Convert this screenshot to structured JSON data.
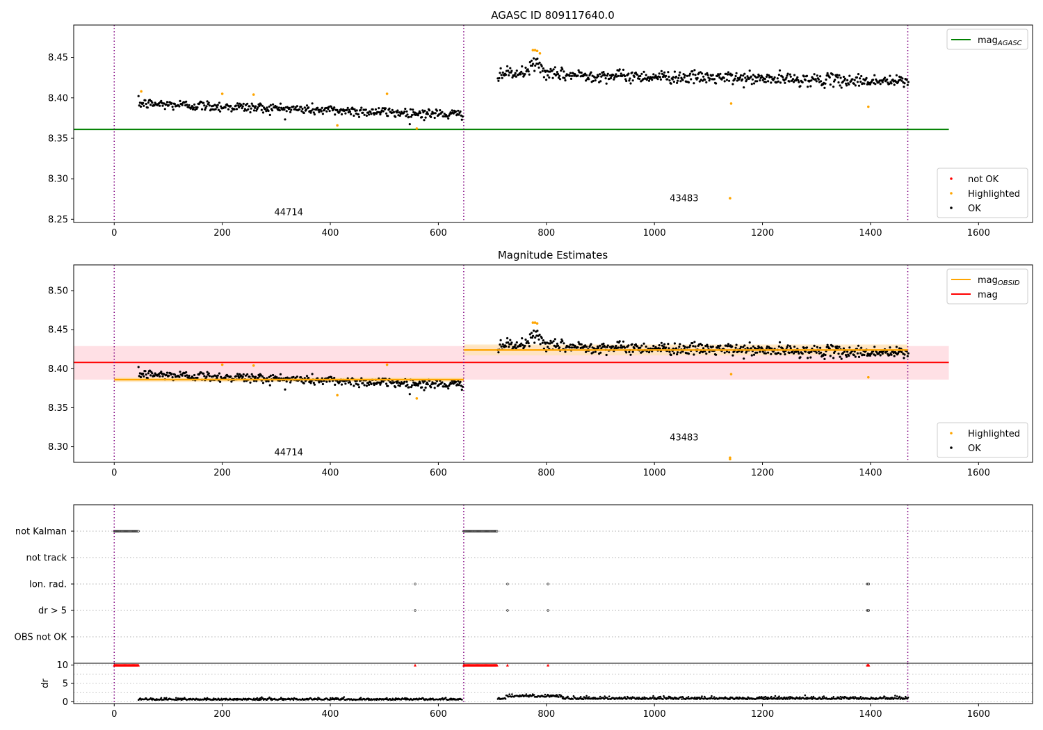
{
  "colors": {
    "ok": "#000000",
    "highlighted": "#ffa500",
    "not_ok": "#ff0000",
    "agasc_line": "#008000",
    "mag_line": "#ff0000",
    "mag_band": "#ffd6dc",
    "obsid_line": "#ffa500",
    "obsid_band": "#ffe3b8",
    "obs_boundary": "#800080",
    "grid": "#b0b0b0"
  },
  "chart_data": [
    {
      "type": "scatter",
      "title": "AGASC ID 809117640.0",
      "xlim": [
        -75,
        1700
      ],
      "ylim": [
        8.246,
        8.49
      ],
      "xticks": [
        0,
        200,
        400,
        600,
        800,
        1000,
        1200,
        1400,
        1600
      ],
      "xtick_labels": [
        "0",
        "200",
        "400",
        "600",
        "800",
        "1000",
        "1200",
        "1400",
        "1600"
      ],
      "yticks": [
        8.25,
        8.3,
        8.35,
        8.4,
        8.45
      ],
      "ytick_labels": [
        "8.25",
        "8.30",
        "8.35",
        "8.40",
        "8.45"
      ],
      "obs_boundaries": [
        0,
        647,
        1469
      ],
      "obsid_labels": [
        {
          "x": 323,
          "y": 8.255,
          "text": "44714"
        },
        {
          "x": 1055,
          "y": 8.272,
          "text": "43483"
        }
      ],
      "agasc_mag": {
        "value": 8.361,
        "x": [
          -75,
          1545
        ]
      },
      "segments": [
        {
          "x_start": 45,
          "x_end": 645,
          "y_start": 8.393,
          "y_end": 8.379,
          "noise": 0.006,
          "n": 430
        },
        {
          "x_start": 710,
          "x_end": 1470,
          "y_start": 8.43,
          "y_end": 8.42,
          "noise": 0.007,
          "n": 560
        }
      ],
      "highlighted_points": [
        [
          50,
          8.408
        ],
        [
          200,
          8.405
        ],
        [
          258,
          8.404
        ],
        [
          413,
          8.366
        ],
        [
          505,
          8.405
        ],
        [
          560,
          8.362
        ],
        [
          775,
          8.459
        ],
        [
          779,
          8.459
        ],
        [
          783,
          8.458
        ],
        [
          788,
          8.455
        ],
        [
          1142,
          8.393
        ],
        [
          1140,
          8.276
        ],
        [
          1396,
          8.389
        ]
      ],
      "not_ok_points": [],
      "legends": [
        {
          "position": "upper right",
          "entries": [
            {
              "label_main": "mag",
              "label_sub": "AGASC",
              "kind": "line",
              "color": "#008000"
            }
          ]
        },
        {
          "position": "lower right",
          "entries": [
            {
              "label": "not OK",
              "kind": "dot",
              "color": "#ff0000"
            },
            {
              "label": "Highlighted",
              "kind": "dot",
              "color": "#ffa500"
            },
            {
              "label": "OK",
              "kind": "dot",
              "color": "#000000"
            }
          ]
        }
      ]
    },
    {
      "type": "scatter",
      "title": "Magnitude Estimates",
      "xlim": [
        -75,
        1700
      ],
      "ylim": [
        8.28,
        8.533
      ],
      "xticks": [
        0,
        200,
        400,
        600,
        800,
        1000,
        1200,
        1400,
        1600
      ],
      "xtick_labels": [
        "0",
        "200",
        "400",
        "600",
        "800",
        "1000",
        "1200",
        "1400",
        "1600"
      ],
      "yticks": [
        8.3,
        8.35,
        8.4,
        8.45,
        8.5
      ],
      "ytick_labels": [
        "8.30",
        "8.35",
        "8.40",
        "8.45",
        "8.50"
      ],
      "obs_boundaries": [
        0,
        647,
        1469
      ],
      "obsid_labels": [
        {
          "x": 323,
          "y": 8.289,
          "text": "44714"
        },
        {
          "x": 1055,
          "y": 8.308,
          "text": "43483"
        }
      ],
      "mag": {
        "value": 8.408,
        "band": [
          8.386,
          8.429
        ],
        "x": [
          -75,
          1545
        ]
      },
      "obsid_mags": [
        {
          "x": [
            0,
            647
          ],
          "value": 8.386,
          "band": [
            8.383,
            8.389
          ]
        },
        {
          "x": [
            647,
            1469
          ],
          "value": 8.424,
          "band": [
            8.417,
            8.431
          ]
        }
      ],
      "segments": [
        {
          "x_start": 45,
          "x_end": 645,
          "y_start": 8.393,
          "y_end": 8.379,
          "noise": 0.006,
          "n": 430
        },
        {
          "x_start": 710,
          "x_end": 1470,
          "y_start": 8.43,
          "y_end": 8.42,
          "noise": 0.007,
          "n": 560
        }
      ],
      "highlighted_points": [
        [
          200,
          8.405
        ],
        [
          258,
          8.404
        ],
        [
          413,
          8.366
        ],
        [
          505,
          8.405
        ],
        [
          560,
          8.362
        ],
        [
          775,
          8.459
        ],
        [
          779,
          8.459
        ],
        [
          783,
          8.458
        ],
        [
          1142,
          8.393
        ],
        [
          1140,
          8.284
        ],
        [
          1140,
          8.286
        ],
        [
          1396,
          8.389
        ]
      ],
      "legends": [
        {
          "position": "upper right",
          "entries": [
            {
              "label_main": "mag",
              "label_sub": "OBSID",
              "kind": "line",
              "color": "#ffa500"
            },
            {
              "label": "mag",
              "kind": "line",
              "color": "#ff0000"
            }
          ]
        },
        {
          "position": "lower right",
          "entries": [
            {
              "label": "Highlighted",
              "kind": "dot",
              "color": "#ffa500"
            },
            {
              "label": "OK",
              "kind": "dot",
              "color": "#000000"
            }
          ]
        }
      ]
    },
    {
      "type": "scatter",
      "title": "",
      "xlim": [
        -75,
        1700
      ],
      "categories": [
        "OBS not OK",
        "dr > 5",
        "Ion. rad.",
        "not track",
        "not Kalman"
      ],
      "flag_points": {
        "not Kalman": [
          [
            0,
            45
          ],
          [
            647,
            709
          ]
        ],
        "Ion. rad.": [
          [
            557,
            557
          ],
          [
            728,
            728
          ],
          [
            803,
            803
          ],
          [
            1394,
            1397
          ]
        ],
        "dr > 5": [
          [
            557,
            557
          ],
          [
            728,
            728
          ],
          [
            803,
            803
          ],
          [
            1394,
            1397
          ]
        ]
      },
      "obs_boundaries": [
        0,
        647,
        1469
      ],
      "xticks": [
        0,
        200,
        400,
        600,
        800,
        1000,
        1200,
        1400,
        1600
      ],
      "xtick_labels": [
        "0",
        "200",
        "400",
        "600",
        "800",
        "1000",
        "1200",
        "1400",
        "1600"
      ]
    },
    {
      "type": "scatter",
      "title": "",
      "ylabel": "dr",
      "xlim": [
        -75,
        1700
      ],
      "ylim": [
        -0.5,
        10.5
      ],
      "yticks": [
        0,
        5,
        10
      ],
      "ytick_labels": [
        "0",
        "5",
        "10"
      ],
      "xticks": [
        0,
        200,
        400,
        600,
        800,
        1000,
        1200,
        1400,
        1600
      ],
      "xtick_labels": [
        "0",
        "200",
        "400",
        "600",
        "800",
        "1000",
        "1200",
        "1400",
        "1600"
      ],
      "obs_boundaries": [
        0,
        647,
        1469
      ],
      "clipped_high_points": [
        [
          0,
          45
        ],
        [
          647,
          709
        ],
        [
          557,
          557
        ],
        [
          728,
          728
        ],
        [
          803,
          803
        ],
        [
          1394,
          1397
        ]
      ],
      "dr_segments": [
        {
          "x_start": 45,
          "x_end": 645,
          "level": 0.5,
          "noise": 0.25
        },
        {
          "x_start": 710,
          "x_end": 1470,
          "level": 0.7,
          "noise": 0.35
        }
      ]
    }
  ]
}
